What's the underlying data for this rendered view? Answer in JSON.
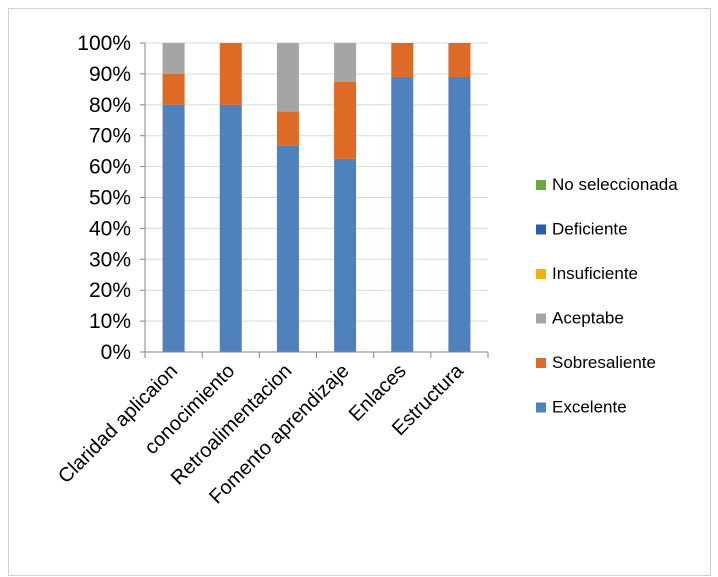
{
  "chart_data": {
    "type": "bar",
    "stacked": "percent",
    "title": "",
    "xlabel": "",
    "ylabel": "",
    "ylim": [
      0,
      100
    ],
    "y_ticks": [
      "0%",
      "10%",
      "20%",
      "30%",
      "40%",
      "50%",
      "60%",
      "70%",
      "80%",
      "90%",
      "100%"
    ],
    "grid": true,
    "legend_position": "right",
    "categories": [
      "Claridad aplicaion",
      "conocimiento",
      "Retroalimentacion",
      "Fomento aprendizaje",
      "Enlaces",
      "Estructura"
    ],
    "series": [
      {
        "name": "Excelente",
        "color": "#4f81bd",
        "values": [
          80,
          80,
          66.7,
          62.5,
          89,
          89
        ]
      },
      {
        "name": "Sobresaliente",
        "color": "#dd6b25",
        "values": [
          10,
          20,
          11.1,
          25,
          11,
          11
        ]
      },
      {
        "name": "Aceptabe",
        "color": "#a5a5a5",
        "values": [
          10,
          0,
          22.2,
          12.5,
          0,
          0
        ]
      },
      {
        "name": "Insuficiente",
        "color": "#f0b400",
        "values": [
          0,
          0,
          0,
          0,
          0,
          0
        ]
      },
      {
        "name": "Deficiente",
        "color": "#2c5ca8",
        "values": [
          0,
          0,
          0,
          0,
          0,
          0
        ]
      },
      {
        "name": "No seleccionada",
        "color": "#6aaa3c",
        "values": [
          0,
          0,
          0,
          0,
          0,
          0
        ]
      }
    ],
    "legend_order": [
      "No seleccionada",
      "Deficiente",
      "Insuficiente",
      "Aceptabe",
      "Sobresaliente",
      "Excelente"
    ]
  }
}
